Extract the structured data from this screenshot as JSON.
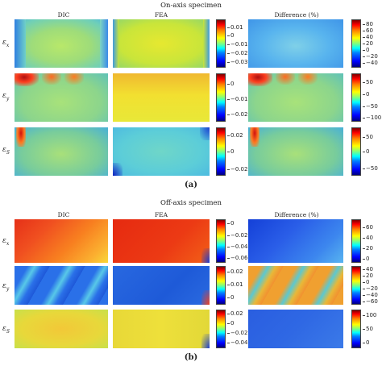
{
  "part_a": {
    "title": "On-axis specimen",
    "col_dic": "DIC",
    "col_fea": "FEA",
    "col_diff": "Difference (%)",
    "row_ex": "x",
    "row_ey": "y",
    "row_es": "S",
    "sublabel": "(a)",
    "cb_ex_fea": [
      "0.01",
      "0",
      "−0.01",
      "−0.02",
      "−0.03"
    ],
    "cb_ex_diff": [
      "80",
      "60",
      "40",
      "20",
      "0",
      "−20",
      "−40"
    ],
    "cb_ey_fea": [
      "0",
      "−0.01",
      "−0.02"
    ],
    "cb_ey_diff": [
      "50",
      "0",
      "−50",
      "−100"
    ],
    "cb_es_fea": [
      "0.02",
      "0",
      "−0.02"
    ],
    "cb_es_diff": [
      "50",
      "0",
      "−50"
    ]
  },
  "part_b": {
    "title": "Off-axis specimen",
    "col_dic": "DIC",
    "col_fea": "FEA",
    "col_diff": "Difference (%)",
    "row_ex": "x",
    "row_ey": "y",
    "row_es": "S",
    "sublabel": "(b)",
    "cb_ex_fea": [
      "0",
      "−0.02",
      "−0.04",
      "−0.06"
    ],
    "cb_ex_diff": [
      "60",
      "40",
      "20",
      "0"
    ],
    "cb_ey_fea": [
      "0.02",
      "0.01",
      "0"
    ],
    "cb_ey_diff": [
      "40",
      "20",
      "0",
      "−20",
      "−40",
      "−60"
    ],
    "cb_es_fea": [
      "0.02",
      "0",
      "−0.02",
      "−0.04"
    ],
    "cb_es_diff": [
      "100",
      "50",
      "0"
    ]
  }
}
